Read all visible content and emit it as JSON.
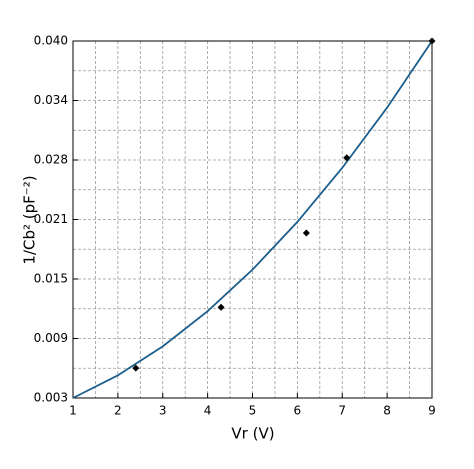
{
  "chart_data": {
    "type": "scatter",
    "x_label": "Vr (V)",
    "y_label": "1/Cb² (pF⁻²)",
    "xlim": [
      1,
      9
    ],
    "xticks": [
      1,
      2,
      3,
      4,
      5,
      6,
      7,
      8,
      9
    ],
    "ylim": [
      0.003,
      0.04
    ],
    "yticks": [
      {
        "value": 0.003,
        "label": "0.003"
      },
      {
        "value": 0.009167,
        "label": "0.009"
      },
      {
        "value": 0.015333,
        "label": "0.015"
      },
      {
        "value": 0.0215,
        "label": "0.021"
      },
      {
        "value": 0.027667,
        "label": "0.028"
      },
      {
        "value": 0.033833,
        "label": "0.034"
      },
      {
        "value": 0.04,
        "label": "0.040"
      }
    ],
    "grid": true,
    "points": {
      "color": "#000000",
      "x": [
        2.4,
        4.3,
        6.2,
        7.1,
        9
      ],
      "values": [
        0.0061,
        0.0124,
        0.0201,
        0.0279,
        0.04
      ]
    },
    "fit": {
      "color": "#1b5e8c",
      "x": [
        1,
        2,
        3,
        4,
        5,
        6,
        7,
        8,
        9
      ],
      "values": [
        0.003,
        0.00535,
        0.00835,
        0.012,
        0.0163,
        0.02125,
        0.02685,
        0.0331,
        0.04
      ]
    }
  }
}
